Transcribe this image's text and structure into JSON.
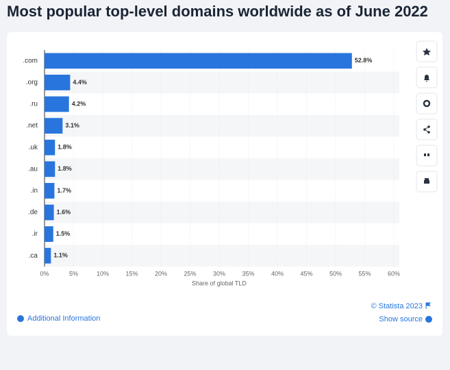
{
  "chart_data": {
    "type": "bar",
    "title": "Most popular top-level domains worldwide as of June 2022",
    "categories": [
      ".com",
      ".org",
      ".ru",
      ".net",
      ".uk",
      ".au",
      ".in",
      ".de",
      ".ir",
      ".ca"
    ],
    "values": [
      52.8,
      4.4,
      4.2,
      3.1,
      1.8,
      1.8,
      1.7,
      1.6,
      1.5,
      1.1
    ],
    "value_labels": [
      "52.8%",
      "4.4%",
      "4.2%",
      "3.1%",
      "1.8%",
      "1.8%",
      "1.7%",
      "1.6%",
      "1.5%",
      "1.1%"
    ],
    "color": "#2876dd",
    "xlabel": "Share of global TLD",
    "xlim": [
      0,
      60
    ],
    "xticks": [
      {
        "value": 0,
        "label": "0%"
      },
      {
        "value": 5,
        "label": "5%"
      },
      {
        "value": 10,
        "label": "10%"
      },
      {
        "value": 15,
        "label": "15%"
      },
      {
        "value": 20,
        "label": "20%"
      },
      {
        "value": 25,
        "label": "25%"
      },
      {
        "value": 30,
        "label": "30%"
      },
      {
        "value": 35,
        "label": "35%"
      },
      {
        "value": 40,
        "label": "40%"
      },
      {
        "value": 45,
        "label": "45%"
      },
      {
        "value": 50,
        "label": "50%"
      },
      {
        "value": 55,
        "label": "55%"
      },
      {
        "value": 60,
        "label": "60%"
      }
    ],
    "grid": true
  },
  "footer": {
    "copyright": "© Statista 2023",
    "additional_info": "Additional Information",
    "show_source": "Show source"
  }
}
